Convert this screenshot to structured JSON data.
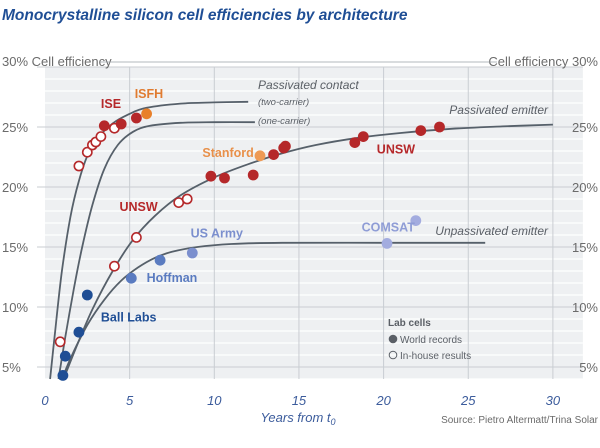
{
  "chart_data": {
    "type": "scatter",
    "title": "Monocrystalline silicon cell efficiencies by architecture",
    "xlabel": "Years from t",
    "xlabel_subscript": "0",
    "ylabel_left": "Cell efficiency",
    "ylabel_right": "Cell efficiency",
    "xlim": [
      0,
      30
    ],
    "ylim": [
      4,
      30
    ],
    "x_ticks": [
      "0",
      "5",
      "10",
      "15",
      "20",
      "25",
      "30"
    ],
    "y_ticks": [
      "5%",
      "10%",
      "15%",
      "20%",
      "25%"
    ],
    "y_top_label": "30%",
    "grid": true,
    "source": "Source: Pietro Altermatt/Trina Solar",
    "legend": {
      "title": "Lab cells",
      "placement": "bottom-right",
      "entries": [
        {
          "label": "World records",
          "marker": "filled-circle"
        },
        {
          "label": "In-house results",
          "marker": "open-circle"
        }
      ]
    },
    "curves": [
      {
        "name": "Passivated contact",
        "sub": "(two-carrier)",
        "points": [
          [
            0.3,
            4
          ],
          [
            0.6,
            8
          ],
          [
            1.0,
            13
          ],
          [
            1.5,
            17.5
          ],
          [
            2.0,
            20.5
          ],
          [
            2.5,
            22.6
          ],
          [
            3.0,
            23.9
          ],
          [
            4.0,
            25.3
          ],
          [
            5.0,
            26.1
          ],
          [
            6.0,
            26.6
          ],
          [
            8.0,
            26.95
          ],
          [
            10.0,
            27.05
          ],
          [
            12.0,
            27.1
          ]
        ]
      },
      {
        "name": "Passivated contact",
        "sub": "(one-carrier)",
        "points": [
          [
            0.8,
            4
          ],
          [
            1.2,
            7.5
          ],
          [
            1.7,
            11.5
          ],
          [
            2.2,
            15
          ],
          [
            2.8,
            18.5
          ],
          [
            3.5,
            21.5
          ],
          [
            4.3,
            23.5
          ],
          [
            5.2,
            24.6
          ],
          [
            6.2,
            25.1
          ],
          [
            8.0,
            25.35
          ],
          [
            10.0,
            25.4
          ],
          [
            12.4,
            25.4
          ]
        ]
      },
      {
        "name": "Passivated emitter",
        "points": [
          [
            1.1,
            4
          ],
          [
            1.8,
            6.5
          ],
          [
            2.8,
            9.8
          ],
          [
            4.0,
            13.0
          ],
          [
            5.2,
            15.6
          ],
          [
            6.5,
            17.6
          ],
          [
            8.0,
            19.3
          ],
          [
            10.0,
            20.8
          ],
          [
            12.0,
            21.9
          ],
          [
            14.0,
            22.8
          ],
          [
            16.0,
            23.5
          ],
          [
            18.5,
            24.1
          ],
          [
            21.0,
            24.5
          ],
          [
            24.0,
            24.85
          ],
          [
            27.0,
            25.05
          ],
          [
            30.0,
            25.2
          ]
        ]
      },
      {
        "name": "Unpassivated emitter",
        "points": [
          [
            1.0,
            4
          ],
          [
            1.6,
            6
          ],
          [
            2.5,
            8.5
          ],
          [
            3.5,
            10.6
          ],
          [
            4.5,
            12.2
          ],
          [
            5.5,
            13.3
          ],
          [
            6.5,
            14.1
          ],
          [
            7.5,
            14.6
          ],
          [
            9.0,
            15.0
          ],
          [
            11.0,
            15.25
          ],
          [
            14.0,
            15.35
          ],
          [
            20.0,
            15.35
          ],
          [
            26.0,
            15.35
          ]
        ]
      }
    ],
    "series": [
      {
        "name": "Ball Labs",
        "label_color": "#1f4e95",
        "color": "#1f4e95",
        "marker": "filled",
        "points": [
          [
            1.06,
            4.3
          ],
          [
            1.2,
            5.9
          ],
          [
            2.0,
            7.9
          ],
          [
            2.5,
            11.0
          ]
        ]
      },
      {
        "name": "Hoffman",
        "label_color": "#5a7bc0",
        "color": "#5a7bc0",
        "marker": "filled",
        "points": [
          [
            5.1,
            12.4
          ],
          [
            6.8,
            13.9
          ]
        ]
      },
      {
        "name": "US Army",
        "label_color": "#7b8fce",
        "color": "#7b8fce",
        "marker": "filled",
        "points": [
          [
            8.7,
            14.5
          ]
        ]
      },
      {
        "name": "COMSAT",
        "label_color": "#8f9dd6",
        "color": "#a3acdf",
        "marker": "filled",
        "points": [
          [
            20.2,
            15.3
          ],
          [
            21.9,
            17.2
          ]
        ]
      },
      {
        "name": "UNSW (in-house)",
        "label_color": "#b5282a",
        "color": "#b5282a",
        "marker": "open",
        "points": [
          [
            0.9,
            7.1
          ],
          [
            4.1,
            13.4
          ],
          [
            5.4,
            15.8
          ],
          [
            7.9,
            18.7
          ],
          [
            8.4,
            19.0
          ]
        ]
      },
      {
        "name": "ISE (in-house)",
        "label_color": "#b5282a",
        "color": "#b5282a",
        "marker": "open",
        "points": [
          [
            2.0,
            21.75
          ],
          [
            2.5,
            22.9
          ],
          [
            2.8,
            23.5
          ],
          [
            3.0,
            23.75
          ],
          [
            3.3,
            24.2
          ],
          [
            4.1,
            24.9
          ]
        ]
      },
      {
        "name": "ISE",
        "label_color": "#b5282a",
        "color": "#b5282a",
        "marker": "filled",
        "points": [
          [
            3.5,
            25.1
          ],
          [
            4.5,
            25.25
          ],
          [
            5.4,
            25.75
          ]
        ]
      },
      {
        "name": "ISFH",
        "label_color": "#e07b30",
        "color": "#e8802a",
        "marker": "filled",
        "points": [
          [
            6.0,
            26.1
          ]
        ]
      },
      {
        "name": "UNSW",
        "label_color": "#b5282a",
        "color": "#b5282a",
        "marker": "filled",
        "points": [
          [
            9.8,
            20.9
          ],
          [
            10.6,
            20.75
          ],
          [
            12.3,
            21.0
          ],
          [
            13.5,
            22.7
          ],
          [
            14.1,
            23.25
          ],
          [
            14.2,
            23.4
          ],
          [
            18.3,
            23.7
          ],
          [
            18.8,
            24.2
          ],
          [
            22.2,
            24.7
          ],
          [
            23.3,
            25.0
          ]
        ]
      },
      {
        "name": "Stanford",
        "label_color": "#e8904a",
        "color": "#ee9a55",
        "marker": "filled",
        "points": [
          [
            12.7,
            22.6
          ]
        ]
      }
    ],
    "annotations": [
      {
        "text": "ISE",
        "x": 3.3,
        "y": 26.6,
        "color": "#b5282a"
      },
      {
        "text": "ISFH",
        "x": 5.3,
        "y": 27.4,
        "color": "#e07b30"
      },
      {
        "text": "Stanford",
        "x": 9.3,
        "y": 22.5,
        "color": "#e8904a"
      },
      {
        "text": "UNSW",
        "x": 19.6,
        "y": 22.8,
        "color": "#b5282a"
      },
      {
        "text": "UNSW",
        "x": 4.4,
        "y": 18.0,
        "color": "#b5282a"
      },
      {
        "text": "US Army",
        "x": 8.6,
        "y": 15.8,
        "color": "#7b8fce"
      },
      {
        "text": "Hoffman",
        "x": 6.0,
        "y": 12.1,
        "color": "#5a7bc0"
      },
      {
        "text": "Ball Labs",
        "x": 3.3,
        "y": 8.8,
        "color": "#1f4e95"
      },
      {
        "text": "COMSAT",
        "x": 18.7,
        "y": 16.3,
        "color": "#8f9dd6"
      }
    ],
    "curve_labels": {
      "passivated_contact": "Passivated contact",
      "two_carrier": "(two-carrier)",
      "one_carrier": "(one-carrier)",
      "passivated_emitter": "Passivated emitter",
      "unpassivated_emitter": "Unpassivated emitter"
    }
  },
  "colors": {
    "title": "#1f4e95",
    "plot_bg": "#eef0f2",
    "grid_major": "#c9cdd2",
    "grid_minor": "#ffffff",
    "curve": "#56606a"
  }
}
